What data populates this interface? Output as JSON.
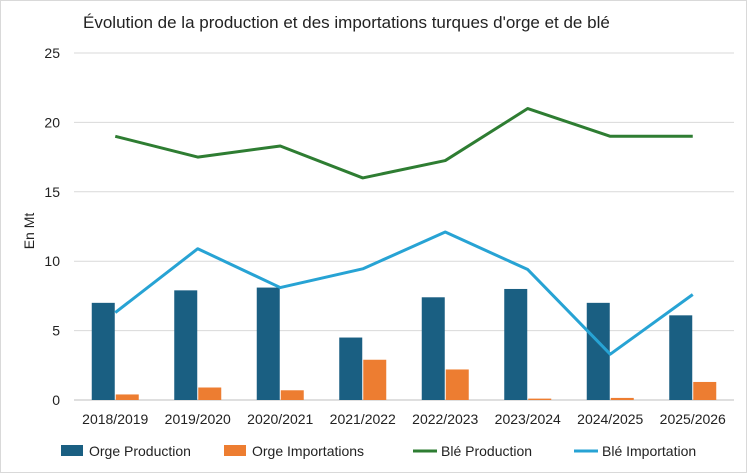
{
  "chart_data": {
    "type": "bar+line",
    "title": "Évolution de la production et des importations turques d'orge et de blé",
    "xlabel": "",
    "ylabel": "En Mt",
    "ylim": [
      0,
      25
    ],
    "yticks": [
      0,
      5,
      10,
      15,
      20,
      25
    ],
    "grid": true,
    "legend_position": "bottom",
    "categories": [
      "2018/2019",
      "2019/2020",
      "2020/2021",
      "2021/2022",
      "2022/2023",
      "2023/2024",
      "2024/2025",
      "2025/2026"
    ],
    "series": [
      {
        "name": "Orge Production",
        "type": "bar",
        "color": "#1a5f82",
        "values": [
          7.0,
          7.9,
          8.1,
          4.5,
          7.4,
          8.0,
          7.0,
          6.1
        ]
      },
      {
        "name": "Orge Importations",
        "type": "bar",
        "color": "#ed7d31",
        "values": [
          0.4,
          0.9,
          0.7,
          2.9,
          2.2,
          0.1,
          0.15,
          1.3
        ]
      },
      {
        "name": "Blé Production",
        "type": "line",
        "color": "#2e7d32",
        "values": [
          19.0,
          17.5,
          18.3,
          16.0,
          17.25,
          21.0,
          19.0,
          19.0
        ]
      },
      {
        "name": "Blé Importation",
        "type": "line",
        "color": "#27a3d4",
        "values": [
          6.3,
          10.9,
          8.1,
          9.45,
          12.1,
          9.4,
          3.3,
          7.6
        ]
      }
    ]
  }
}
